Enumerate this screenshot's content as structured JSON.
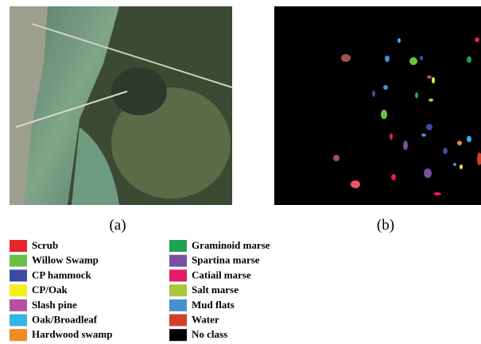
{
  "figure": {
    "captions": [
      "(a)",
      "(b)"
    ],
    "legend": [
      {
        "label": "Scrub",
        "color": "#e8232a"
      },
      {
        "label": "Willow Swamp",
        "color": "#6ac046"
      },
      {
        "label": "CP hammock",
        "color": "#3d4aa0"
      },
      {
        "label": "CP/Oak",
        "color": "#f2ee1c"
      },
      {
        "label": "Slash pine",
        "color": "#b84f9e"
      },
      {
        "label": "Oak/Broadleaf",
        "color": "#35b5e6"
      },
      {
        "label": "Hardwood swamp",
        "color": "#f08a24"
      },
      {
        "label": "Graminoid marse",
        "color": "#1fa354"
      },
      {
        "label": "Spartina marse",
        "color": "#7b4ea0"
      },
      {
        "label": "Catiail marse",
        "color": "#e5196a"
      },
      {
        "label": "Salt marse",
        "color": "#a8c83a"
      },
      {
        "label": "Mud flats",
        "color": "#4a8fcf"
      },
      {
        "label": "Water",
        "color": "#d2402c"
      },
      {
        "label": "No class",
        "color": "#000000"
      }
    ]
  }
}
